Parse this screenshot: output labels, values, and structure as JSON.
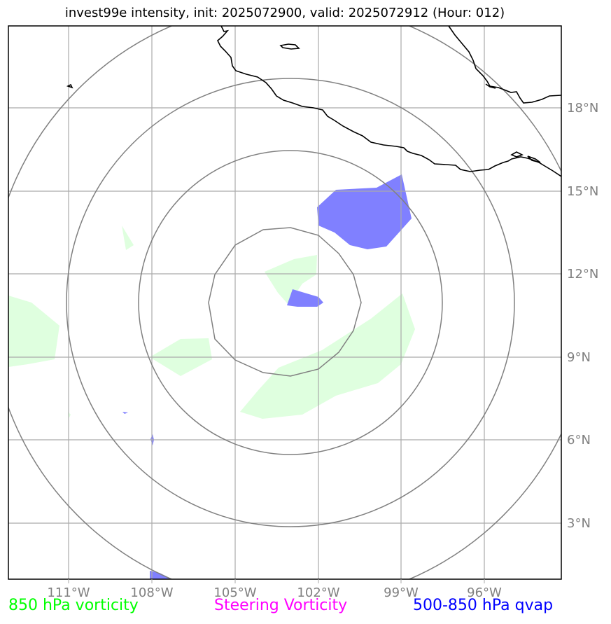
{
  "title": "invest99e intensity, init: 2025072900, valid: 2025072912 (Hour: 012)",
  "colors": {
    "vorticity": "#00ff00",
    "steering": "#ff00ff",
    "qvap": "#0000ff",
    "vorticity_fill": "#dfffdf",
    "qvap_fill": "#8080ff",
    "grid": "#aaaaaa",
    "rings": "#808080",
    "coast": "#000000"
  },
  "map": {
    "lon_labels": [
      "111°W",
      "108°W",
      "105°W",
      "102°W",
      "99°W",
      "96°W"
    ],
    "lat_labels": [
      "18°N",
      "15°N",
      "12°N",
      "9°N",
      "6°N",
      "3°N"
    ],
    "center": {
      "lon": -103,
      "lat": 11
    },
    "ring_radii_deg": [
      3,
      6,
      9,
      12
    ]
  },
  "legend": {
    "vorticity": "850 hPa vorticity",
    "steering": "Steering Vorticity",
    "qvap": "500-850 hPa qvap"
  }
}
